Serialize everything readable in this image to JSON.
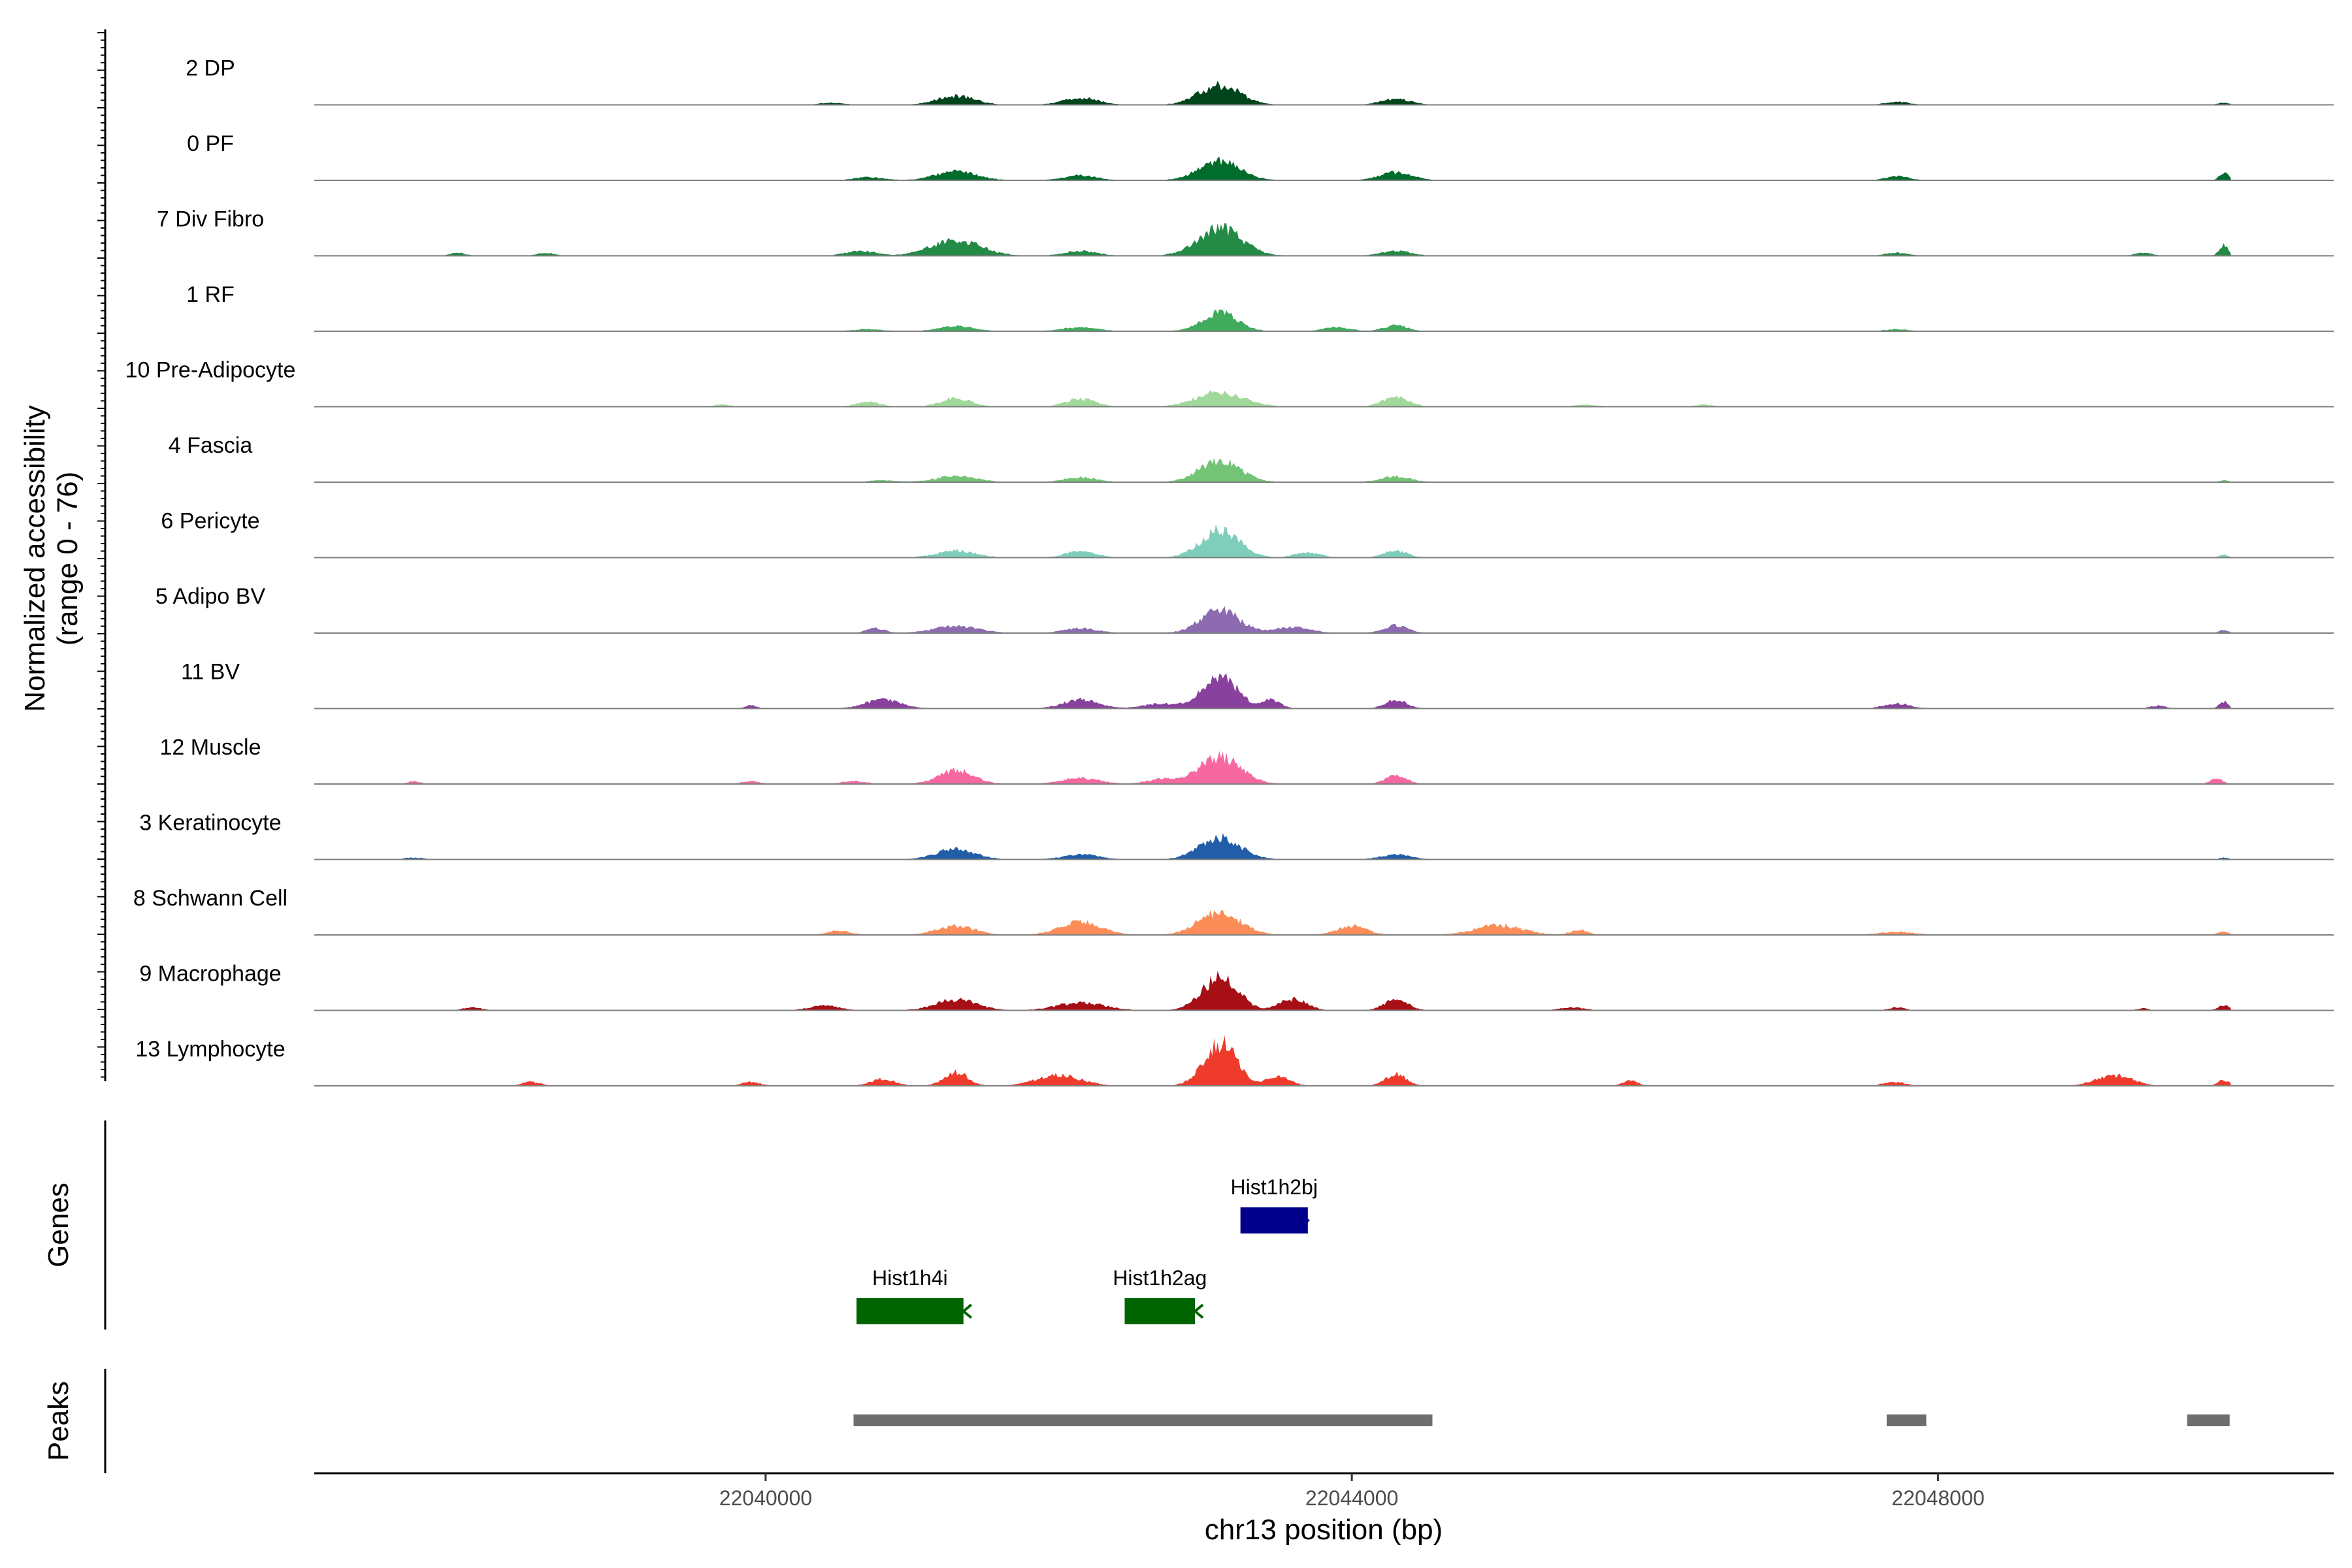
{
  "chart_data": {
    "type": "area",
    "title": "",
    "ylabel": "Normalized accessibility",
    "ylabel_sub": "(range 0 - 76)",
    "y_range": [
      0,
      76
    ],
    "xlabel": "chr13 position (bp)",
    "xlim": [
      22036920,
      22050700
    ],
    "x_ticks": [
      22040000,
      22044000,
      22048000
    ],
    "x_tick_labels": [
      "22040000",
      "22044000",
      "22048000"
    ],
    "grid": false,
    "legend": "none",
    "tracks": [
      {
        "name": "2 DP",
        "color": "#00441b",
        "peaks": [
          [
            22041300,
            9,
            130
          ],
          [
            22042150,
            7,
            120
          ],
          [
            22043100,
            20,
            140
          ],
          [
            22044300,
            6,
            100
          ],
          [
            22047720,
            3,
            80
          ],
          [
            22040450,
            2,
            80
          ],
          [
            22049950,
            2,
            40
          ]
        ]
      },
      {
        "name": "0 PF",
        "color": "#006d2c",
        "peaks": [
          [
            22041300,
            9,
            140
          ],
          [
            22042150,
            5,
            110
          ],
          [
            22043100,
            20,
            140
          ],
          [
            22044300,
            8,
            110
          ],
          [
            22047720,
            4,
            80
          ],
          [
            22040700,
            3,
            100
          ],
          [
            22049950,
            8,
            30
          ]
        ]
      },
      {
        "name": "7 Div Fibro",
        "color": "#238b45",
        "peaks": [
          [
            22041300,
            16,
            170
          ],
          [
            22042150,
            5,
            110
          ],
          [
            22043100,
            28,
            150
          ],
          [
            22044300,
            5,
            100
          ],
          [
            22037900,
            3,
            50
          ],
          [
            22038500,
            3,
            60
          ],
          [
            22040650,
            5,
            100
          ],
          [
            22047720,
            3,
            80
          ],
          [
            22049400,
            3,
            60
          ],
          [
            22049950,
            11,
            30
          ]
        ]
      },
      {
        "name": "1 RF",
        "color": "#41ab5d",
        "peaks": [
          [
            22041300,
            5,
            120
          ],
          [
            22042150,
            4,
            120
          ],
          [
            22043100,
            19,
            120
          ],
          [
            22044300,
            6,
            80
          ],
          [
            22043900,
            4,
            90
          ],
          [
            22047720,
            2,
            80
          ],
          [
            22040700,
            2,
            100
          ]
        ]
      },
      {
        "name": "10 Pre-Adipocyte",
        "color": "#a1d99b",
        "peaks": [
          [
            22041300,
            9,
            100
          ],
          [
            22042150,
            8,
            100
          ],
          [
            22043100,
            15,
            160
          ],
          [
            22044300,
            10,
            90
          ],
          [
            22040700,
            5,
            80
          ],
          [
            22039700,
            2,
            60
          ],
          [
            22045600,
            2,
            80
          ],
          [
            22046400,
            2,
            60
          ]
        ]
      },
      {
        "name": "4 Fascia",
        "color": "#74c476",
        "peaks": [
          [
            22041300,
            6,
            140
          ],
          [
            22042150,
            5,
            110
          ],
          [
            22043100,
            22,
            140
          ],
          [
            22044300,
            6,
            100
          ],
          [
            22040800,
            2,
            90
          ],
          [
            22049950,
            2,
            30
          ]
        ]
      },
      {
        "name": "6 Pericyte",
        "color": "#7fcdbb",
        "peaks": [
          [
            22041300,
            7,
            130
          ],
          [
            22042150,
            7,
            100
          ],
          [
            22043100,
            28,
            130
          ],
          [
            22044300,
            7,
            80
          ],
          [
            22043700,
            5,
            90
          ],
          [
            22049950,
            3,
            30
          ]
        ]
      },
      {
        "name": "5 Adipo BV",
        "color": "#8c6bb1",
        "peaks": [
          [
            22041300,
            7,
            150
          ],
          [
            22042150,
            5,
            110
          ],
          [
            22043100,
            24,
            130
          ],
          [
            22044300,
            8,
            80
          ],
          [
            22043600,
            6,
            120
          ],
          [
            22040750,
            5,
            60
          ],
          [
            22049950,
            3,
            30
          ]
        ]
      },
      {
        "name": "11 BV",
        "color": "#88419d",
        "peaks": [
          [
            22040800,
            9,
            120
          ],
          [
            22042150,
            9,
            120
          ],
          [
            22043100,
            32,
            120
          ],
          [
            22044300,
            9,
            70
          ],
          [
            22043450,
            9,
            60
          ],
          [
            22042700,
            5,
            120
          ],
          [
            22039900,
            3,
            40
          ],
          [
            22047720,
            5,
            90
          ],
          [
            22049950,
            7,
            30
          ],
          [
            22049500,
            3,
            50
          ]
        ]
      },
      {
        "name": "12 Muscle",
        "color": "#f768a1",
        "peaks": [
          [
            22041300,
            14,
            120
          ],
          [
            22042150,
            6,
            130
          ],
          [
            22043100,
            28,
            140
          ],
          [
            22044300,
            9,
            70
          ],
          [
            22042700,
            5,
            100
          ],
          [
            22039900,
            3,
            60
          ],
          [
            22040600,
            3,
            80
          ],
          [
            22037600,
            3,
            40
          ],
          [
            22049900,
            6,
            40
          ]
        ]
      },
      {
        "name": "3 Keratinocyte",
        "color": "#225ea8",
        "peaks": [
          [
            22041300,
            11,
            130
          ],
          [
            22042150,
            5,
            120
          ],
          [
            22043100,
            22,
            140
          ],
          [
            22044300,
            5,
            100
          ],
          [
            22037600,
            2,
            60
          ],
          [
            22049950,
            2,
            30
          ]
        ]
      },
      {
        "name": "8 Schwann Cell",
        "color": "#fc8d59",
        "peaks": [
          [
            22041300,
            9,
            130
          ],
          [
            22042150,
            13,
            140
          ],
          [
            22043100,
            24,
            140
          ],
          [
            22044000,
            9,
            100
          ],
          [
            22045000,
            10,
            160
          ],
          [
            22045550,
            5,
            60
          ],
          [
            22040500,
            4,
            80
          ],
          [
            22047720,
            3,
            120
          ],
          [
            22049950,
            3,
            40
          ]
        ]
      },
      {
        "name": "9 Macrophage",
        "color": "#a50f15",
        "peaks": [
          [
            22041300,
            11,
            140
          ],
          [
            22042150,
            8,
            160
          ],
          [
            22043100,
            34,
            120
          ],
          [
            22043600,
            12,
            90
          ],
          [
            22044300,
            11,
            80
          ],
          [
            22040400,
            5,
            100
          ],
          [
            22045500,
            3,
            80
          ],
          [
            22038000,
            3,
            60
          ],
          [
            22047720,
            3,
            50
          ],
          [
            22049950,
            5,
            40
          ],
          [
            22049400,
            2,
            40
          ]
        ]
      },
      {
        "name": "13 Lymphocyte",
        "color": "#ef3b2c",
        "peaks": [
          [
            22041300,
            14,
            80
          ],
          [
            22042000,
            11,
            150
          ],
          [
            22043100,
            44,
            110
          ],
          [
            22043500,
            9,
            80
          ],
          [
            22044300,
            12,
            70
          ],
          [
            22040800,
            7,
            80
          ],
          [
            22038400,
            4,
            60
          ],
          [
            22039900,
            4,
            60
          ],
          [
            22045900,
            5,
            50
          ],
          [
            22047700,
            4,
            70
          ],
          [
            22049200,
            11,
            120
          ],
          [
            22049950,
            6,
            40
          ]
        ]
      }
    ],
    "genes": [
      {
        "name": "Hist1h2bj",
        "start": 22043240,
        "end": 22043700,
        "color": "#00008b",
        "strand": "+"
      },
      {
        "name": "Hist1h4i",
        "start": 22040620,
        "end": 22041350,
        "color": "#006400",
        "strand": "-"
      },
      {
        "name": "Hist1h2ag",
        "start": 22042450,
        "end": 22042930,
        "color": "#006400",
        "strand": "-"
      }
    ],
    "peaks_track": [
      {
        "start": 22040600,
        "end": 22044550
      },
      {
        "start": 22047650,
        "end": 22047920
      },
      {
        "start": 22049700,
        "end": 22049990
      }
    ],
    "panel_labels": {
      "genes": "Genes",
      "peaks": "Peaks"
    }
  }
}
